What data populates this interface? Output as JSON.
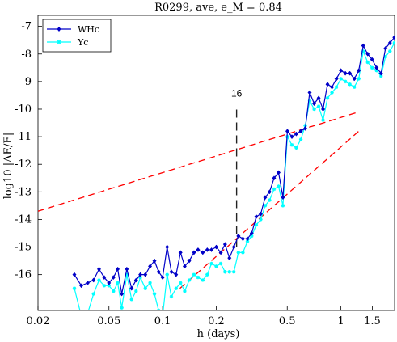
{
  "chart_data": {
    "type": "line",
    "title": "R0299, ave, e_M = 0.84",
    "xlabel": "h (days)",
    "ylabel": "log10 |ΔE/E|",
    "xscale": "log",
    "xlim": [
      0.02,
      2.0
    ],
    "ylim": [
      -17.3,
      -6.6
    ],
    "xticks": [
      0.02,
      0.05,
      0.1,
      0.2,
      0.5,
      1,
      1.5
    ],
    "xtick_labels": [
      "0.02",
      "0.05",
      "0.1",
      "0.2",
      "0.5",
      "1",
      "1.5"
    ],
    "yticks": [
      -16,
      -15,
      -14,
      -13,
      -12,
      -11,
      -10,
      -9,
      -8,
      -7
    ],
    "ytick_labels": [
      "-16",
      "-15",
      "-14",
      "-13",
      "-12",
      "-11",
      "-10",
      "-9",
      "-8",
      "-7"
    ],
    "grid": false,
    "legend_position": "top-left",
    "series": [
      {
        "name": "WHc",
        "color": "#0000c8",
        "marker": "diamond",
        "x": [
          0.032,
          0.035,
          0.038,
          0.041,
          0.044,
          0.047,
          0.05,
          0.053,
          0.056,
          0.059,
          0.063,
          0.067,
          0.071,
          0.075,
          0.08,
          0.085,
          0.09,
          0.095,
          0.1,
          0.106,
          0.112,
          0.119,
          0.126,
          0.133,
          0.141,
          0.15,
          0.158,
          0.168,
          0.178,
          0.188,
          0.2,
          0.212,
          0.224,
          0.237,
          0.251,
          0.266,
          0.282,
          0.299,
          0.316,
          0.335,
          0.355,
          0.376,
          0.398,
          0.422,
          0.447,
          0.473,
          0.501,
          0.531,
          0.562,
          0.596,
          0.631,
          0.668,
          0.708,
          0.75,
          0.794,
          0.841,
          0.891,
          0.944,
          1.0,
          1.059,
          1.122,
          1.189,
          1.259,
          1.334,
          1.413,
          1.496,
          1.585,
          1.679,
          1.778,
          1.884,
          1.995
        ],
        "y": [
          -16.0,
          -16.4,
          -16.3,
          -16.2,
          -15.8,
          -16.1,
          -16.3,
          -16.1,
          -15.8,
          -16.7,
          -15.8,
          -16.5,
          -16.2,
          -16.0,
          -16.0,
          -15.7,
          -15.5,
          -15.9,
          -16.1,
          -15.0,
          -15.9,
          -16.0,
          -15.2,
          -15.7,
          -15.5,
          -15.2,
          -15.1,
          -15.2,
          -15.1,
          -15.1,
          -15.0,
          -15.2,
          -14.9,
          -15.4,
          -15.0,
          -14.6,
          -14.7,
          -14.7,
          -14.5,
          -13.9,
          -13.8,
          -13.2,
          -13.0,
          -12.5,
          -12.3,
          -13.2,
          -10.8,
          -11.0,
          -10.9,
          -10.8,
          -10.7,
          -9.4,
          -9.8,
          -9.6,
          -10.0,
          -9.1,
          -9.2,
          -8.9,
          -8.6,
          -8.7,
          -8.7,
          -8.9,
          -8.6,
          -7.7,
          -8.0,
          -8.2,
          -8.5,
          -8.7,
          -7.8,
          -7.6,
          -7.4
        ]
      },
      {
        "name": "Yc",
        "color": "#00ffff",
        "marker": "star",
        "x": [
          0.032,
          0.035,
          0.038,
          0.041,
          0.044,
          0.047,
          0.05,
          0.053,
          0.056,
          0.059,
          0.063,
          0.067,
          0.071,
          0.075,
          0.08,
          0.085,
          0.09,
          0.095,
          0.1,
          0.106,
          0.112,
          0.119,
          0.126,
          0.133,
          0.141,
          0.15,
          0.158,
          0.168,
          0.178,
          0.188,
          0.2,
          0.212,
          0.224,
          0.237,
          0.251,
          0.266,
          0.282,
          0.299,
          0.316,
          0.335,
          0.355,
          0.376,
          0.398,
          0.422,
          0.447,
          0.473,
          0.501,
          0.531,
          0.562,
          0.596,
          0.631,
          0.668,
          0.708,
          0.75,
          0.794,
          0.841,
          0.891,
          0.944,
          1.0,
          1.059,
          1.122,
          1.189,
          1.259,
          1.334,
          1.413,
          1.496,
          1.585,
          1.679,
          1.778,
          1.884,
          1.995
        ],
        "y": [
          -16.5,
          -17.5,
          -17.4,
          -16.7,
          -16.2,
          -16.4,
          -16.4,
          -16.6,
          -16.3,
          -17.2,
          -16.0,
          -16.9,
          -16.6,
          -16.1,
          -16.5,
          -16.3,
          -16.7,
          -17.3,
          -17.5,
          -16.0,
          -16.8,
          -16.5,
          -16.3,
          -16.6,
          -16.2,
          -16.0,
          -16.1,
          -16.2,
          -16.0,
          -15.6,
          -15.7,
          -15.6,
          -15.9,
          -15.9,
          -15.9,
          -15.2,
          -15.2,
          -14.8,
          -14.6,
          -14.2,
          -14.0,
          -13.5,
          -13.3,
          -12.9,
          -12.8,
          -13.5,
          -11.0,
          -11.3,
          -11.4,
          -11.1,
          -10.6,
          -9.7,
          -10.0,
          -9.9,
          -10.4,
          -9.6,
          -9.4,
          -9.2,
          -8.9,
          -9.0,
          -9.1,
          -9.2,
          -8.9,
          -7.9,
          -8.3,
          -8.5,
          -8.6,
          -8.8,
          -8.1,
          -7.9,
          -7.6
        ]
      }
    ],
    "reference_lines": [
      {
        "color": "#ff0000",
        "style": "dashed",
        "x": [
          0.02,
          1.26
        ],
        "y": [
          -13.7,
          -10.1
        ]
      },
      {
        "color": "#ff0000",
        "style": "dashed",
        "x": [
          0.125,
          1.26
        ],
        "y": [
          -16.5,
          -10.8
        ]
      }
    ],
    "marker_line": {
      "x": 0.26,
      "y": [
        -15.0,
        -9.9
      ],
      "label": "16"
    }
  }
}
